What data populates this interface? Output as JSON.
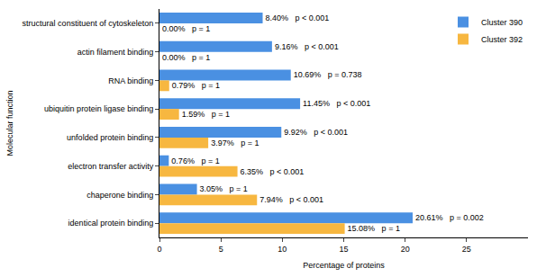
{
  "chart_data": {
    "type": "bar",
    "orientation": "horizontal",
    "x_label": "Percentage of proteins",
    "y_label": "Molecular function",
    "categories": [
      "structural constituent of cytoskeleton",
      "actin filament binding",
      "RNA binding",
      "ubiquitin protein ligase binding",
      "unfolded protein binding",
      "electron transfer activity",
      "chaperone binding",
      "identical protein binding"
    ],
    "series": [
      {
        "name": "Cluster 390",
        "color": "#4a90e2",
        "values": [
          8.4,
          9.16,
          10.69,
          11.45,
          9.92,
          0.76,
          3.05,
          20.61
        ],
        "value_labels": [
          "8.40%   p < 0.001",
          "9.16%   p < 0.001",
          "10.69%   p = 0.738",
          "11.45%   p < 0.001",
          "9.92%   p < 0.001",
          "0.76%   p = 1",
          "3.05%   p = 1",
          "20.61%   p = 0.002"
        ]
      },
      {
        "name": "Cluster 392",
        "color": "#f7b740",
        "values": [
          0.0,
          0.0,
          0.79,
          1.59,
          3.97,
          6.35,
          7.94,
          15.08
        ],
        "value_labels": [
          "0.00%   p = 1",
          "0.00%   p = 1",
          "0.79%   p = 1",
          "1.59%   p = 1",
          "3.97%   p = 1",
          "6.35%   p < 0.001",
          "7.94%   p < 0.001",
          "15.08%   p = 1"
        ]
      }
    ],
    "xlim": [
      0,
      30
    ],
    "xticks": [
      0,
      5,
      10,
      15,
      20,
      25
    ],
    "grid": false,
    "legend": "top right",
    "data_labels": true
  }
}
